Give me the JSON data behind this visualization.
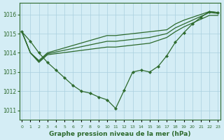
{
  "background_color": "#d4edf5",
  "grid_color": "#aacfdf",
  "line_color": "#2d6a2d",
  "title": "Graphe pression niveau de la mer (hPa)",
  "ylabel_values": [
    1011,
    1012,
    1013,
    1014,
    1015,
    1016
  ],
  "series": [
    {
      "x": [
        0,
        1,
        2,
        3,
        4,
        5,
        6,
        7,
        8,
        9,
        10,
        11,
        12,
        13,
        14,
        15,
        16,
        17,
        18,
        19,
        20,
        21,
        22,
        23
      ],
      "y": [
        1015.1,
        1014.6,
        1014.0,
        1013.5,
        1013.1,
        1012.7,
        1012.3,
        1012.0,
        1011.9,
        1011.7,
        1011.55,
        1011.1,
        1012.05,
        1013.0,
        1013.1,
        1013.0,
        1013.3,
        1013.85,
        1014.55,
        1015.05,
        1015.5,
        1015.85,
        1016.15,
        1016.1
      ],
      "marker": true
    },
    {
      "x": [
        0,
        1,
        2,
        3,
        10,
        11,
        12,
        13,
        14,
        15,
        16,
        17,
        18,
        19,
        20,
        21,
        22,
        23
      ],
      "y": [
        1015.1,
        1014.0,
        1013.6,
        1014.0,
        1014.9,
        1014.9,
        1014.95,
        1015.0,
        1015.05,
        1015.1,
        1015.15,
        1015.2,
        1015.5,
        1015.7,
        1015.85,
        1016.0,
        1016.15,
        1016.1
      ],
      "marker": false
    },
    {
      "x": [
        0,
        1,
        2,
        3,
        10,
        11,
        12,
        13,
        14,
        15,
        16,
        17,
        18,
        19,
        20,
        21,
        22,
        23
      ],
      "y": [
        1015.1,
        1014.0,
        1013.55,
        1013.95,
        1014.6,
        1014.6,
        1014.65,
        1014.7,
        1014.75,
        1014.8,
        1014.9,
        1015.0,
        1015.3,
        1015.5,
        1015.7,
        1015.9,
        1016.1,
        1016.05
      ],
      "marker": false
    },
    {
      "x": [
        0,
        1,
        2,
        3,
        10,
        11,
        12,
        13,
        14,
        15,
        16,
        17,
        18,
        19,
        20,
        21,
        22,
        23
      ],
      "y": [
        1015.1,
        1014.0,
        1013.5,
        1013.9,
        1014.3,
        1014.3,
        1014.35,
        1014.4,
        1014.45,
        1014.5,
        1014.65,
        1014.8,
        1015.1,
        1015.35,
        1015.55,
        1015.75,
        1015.95,
        1015.95
      ],
      "marker": false
    }
  ],
  "ylim": [
    1010.5,
    1016.6
  ],
  "xlim": [
    -0.3,
    23.3
  ],
  "x_labels": [
    "0",
    "1",
    "2",
    "3",
    "4",
    "5",
    "6",
    "7",
    "8",
    "9",
    "10",
    "11",
    "12",
    "13",
    "14",
    "15",
    "16",
    "17",
    "18",
    "19",
    "20",
    "21",
    "22",
    "23"
  ]
}
